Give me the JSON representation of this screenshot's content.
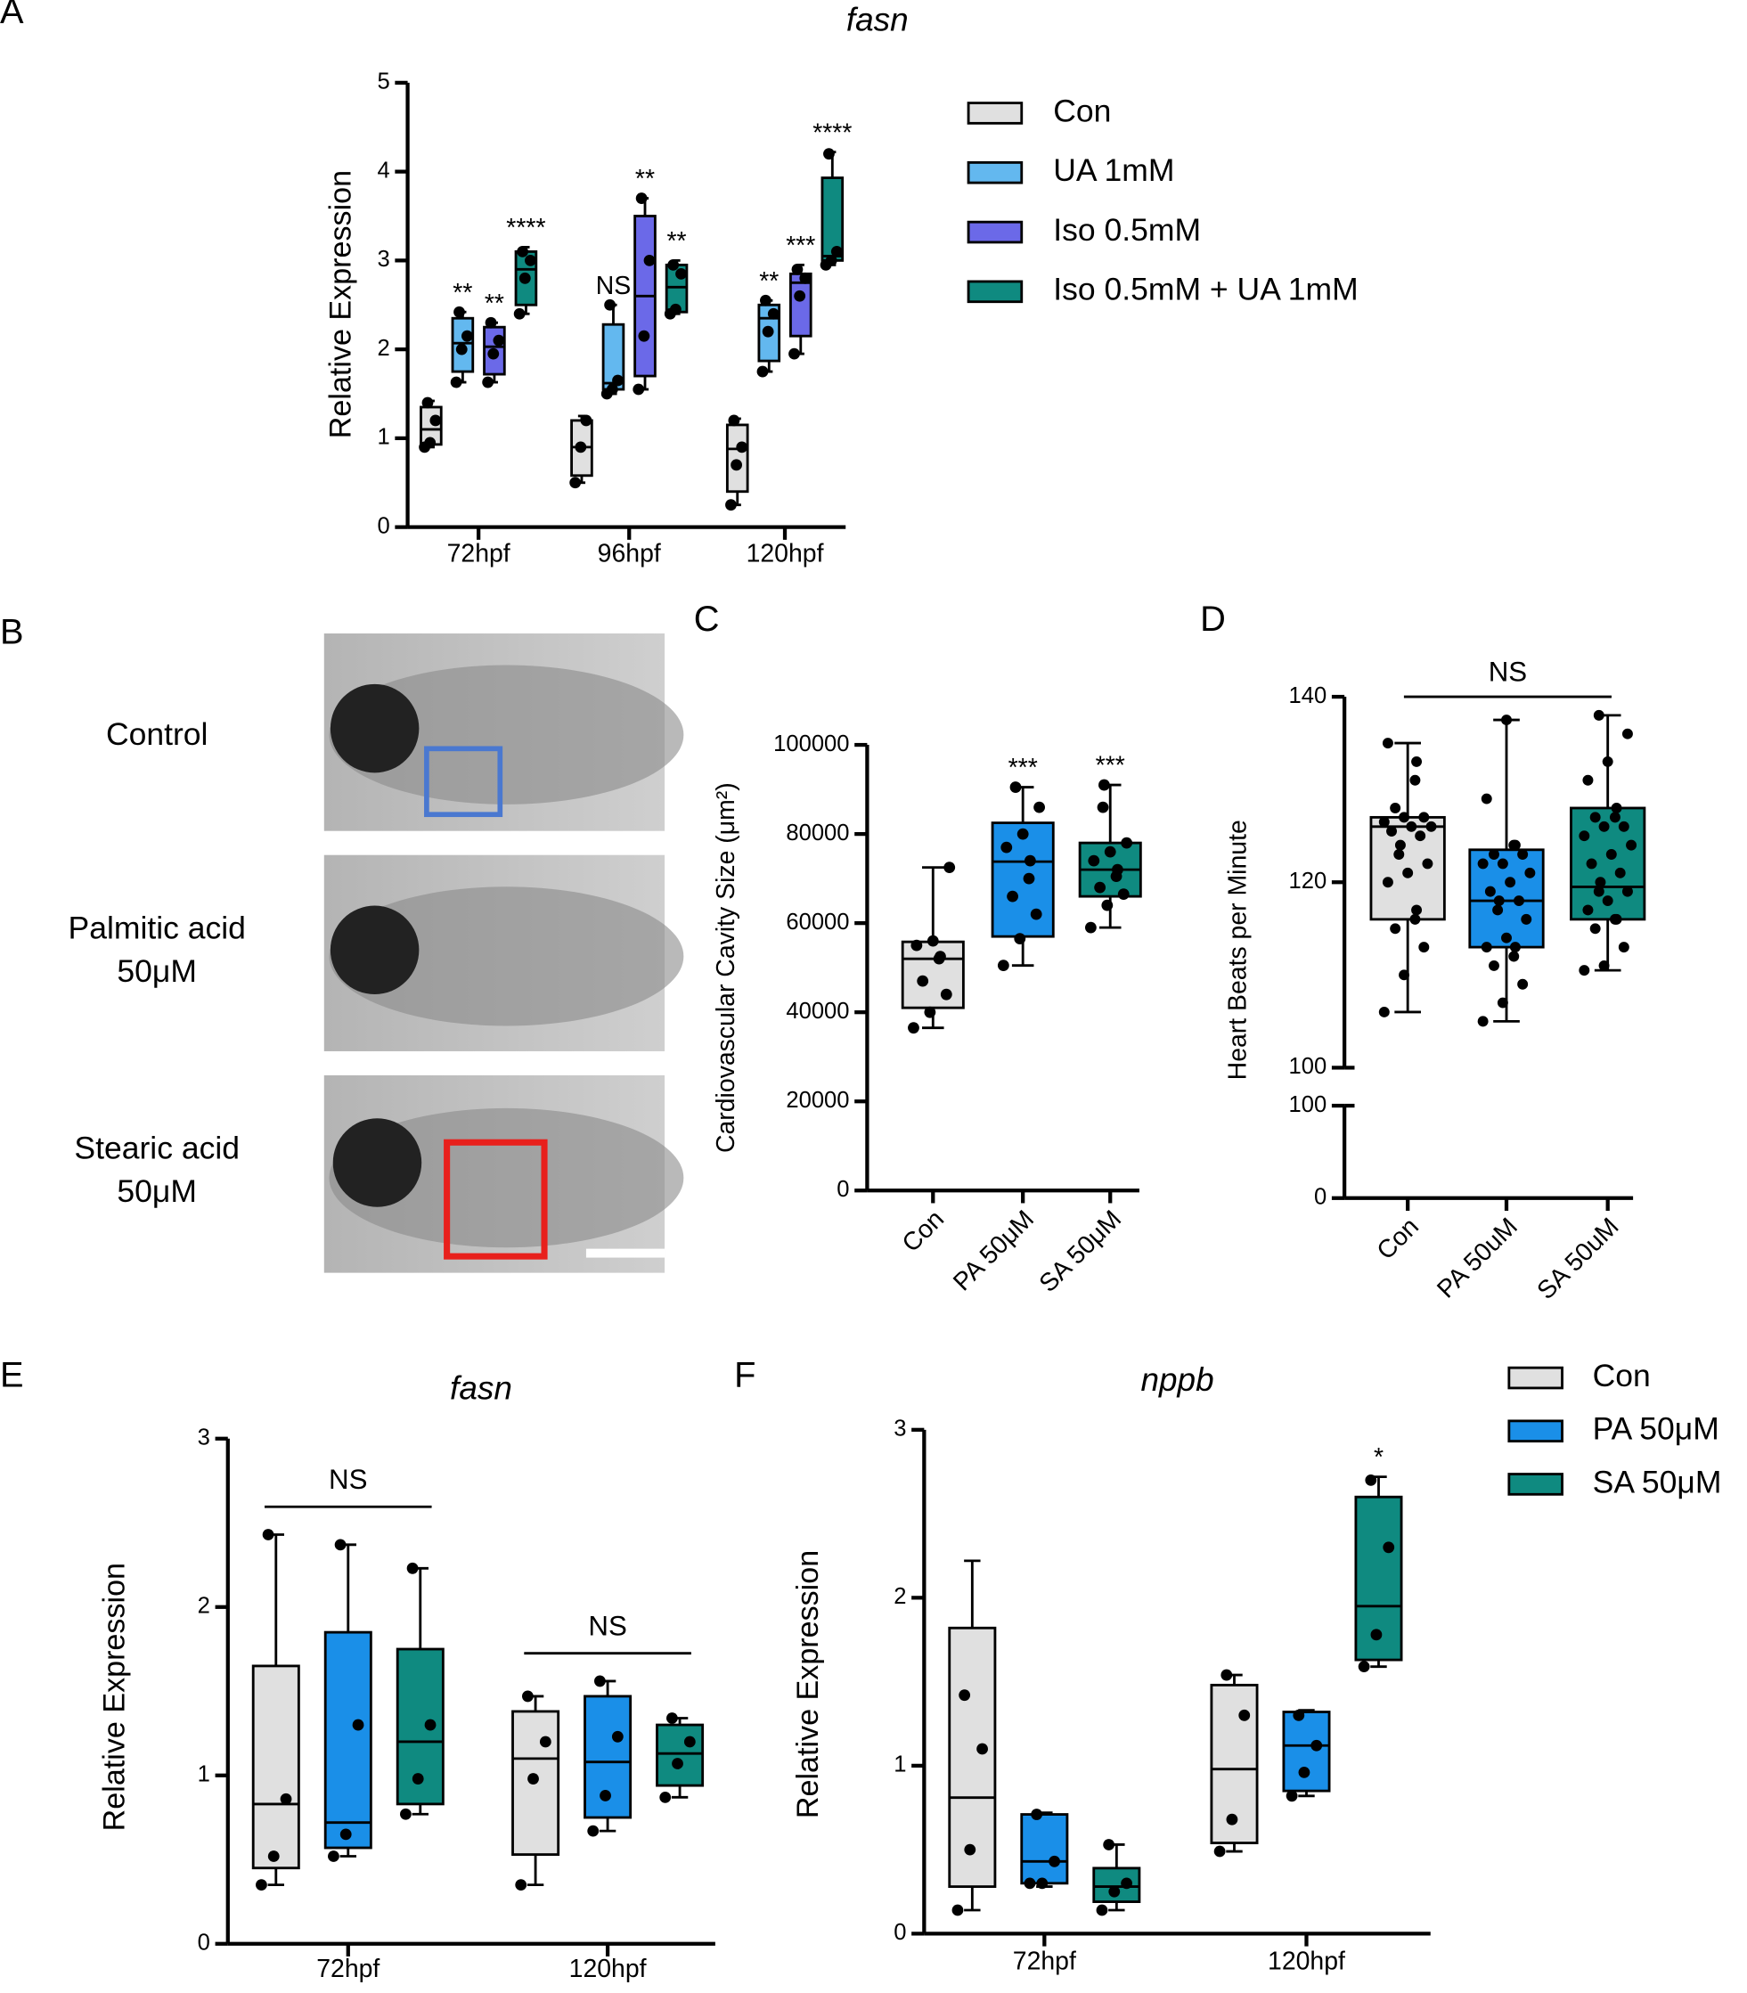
{
  "chart_data": [
    {
      "type": "box",
      "panel": "A",
      "title": "fasn",
      "y_label": "Relative Expression",
      "categories": [
        "72hpf",
        "96hpf",
        "120hpf"
      ],
      "ylim": [
        0,
        5
      ],
      "yticks": [
        0,
        1,
        2,
        3,
        4,
        5
      ],
      "legend": true,
      "series": [
        {
          "name": "Con",
          "color": "#e0e0e0",
          "labels": [
            null,
            null,
            null
          ],
          "boxes": [
            {
              "min": 0.9,
              "q1": 0.93,
              "median": 1.1,
              "q3": 1.35,
              "max": 1.42,
              "points": [
                0.9,
                0.95,
                1.2,
                1.4
              ]
            },
            {
              "min": 0.5,
              "q1": 0.58,
              "median": 0.9,
              "q3": 1.2,
              "max": 1.25,
              "points": [
                0.5,
                0.9,
                1.2
              ]
            },
            {
              "min": 0.25,
              "q1": 0.4,
              "median": 0.88,
              "q3": 1.15,
              "max": 1.22,
              "points": [
                0.25,
                0.7,
                0.9,
                1.2
              ]
            }
          ]
        },
        {
          "name": "UA 1mM",
          "color": "#63b8ef",
          "labels": [
            "**",
            "NS",
            "**"
          ],
          "boxes": [
            {
              "min": 1.63,
              "q1": 1.75,
              "median": 2.07,
              "q3": 2.35,
              "max": 2.42,
              "points": [
                1.63,
                2.0,
                2.15,
                2.42
              ]
            },
            {
              "min": 1.5,
              "q1": 1.55,
              "median": 1.62,
              "q3": 2.28,
              "max": 2.5,
              "points": [
                1.5,
                1.55,
                1.65,
                2.5
              ]
            },
            {
              "min": 1.75,
              "q1": 1.87,
              "median": 2.35,
              "q3": 2.5,
              "max": 2.55,
              "points": [
                1.75,
                2.2,
                2.4,
                2.55
              ]
            }
          ]
        },
        {
          "name": "Iso 0.5mM",
          "color": "#6b69e8",
          "labels": [
            "**",
            "**",
            "***"
          ],
          "boxes": [
            {
              "min": 1.63,
              "q1": 1.72,
              "median": 2.03,
              "q3": 2.25,
              "max": 2.3,
              "points": [
                1.63,
                1.95,
                2.1,
                2.3
              ]
            },
            {
              "min": 1.55,
              "q1": 1.7,
              "median": 2.6,
              "q3": 3.5,
              "max": 3.7,
              "points": [
                1.55,
                2.15,
                3.0,
                3.7
              ]
            },
            {
              "min": 1.95,
              "q1": 2.15,
              "median": 2.75,
              "q3": 2.85,
              "max": 2.95,
              "points": [
                1.95,
                2.6,
                2.8,
                2.9
              ]
            }
          ]
        },
        {
          "name": "Iso 0.5mM + UA 1mM",
          "color": "#0f8a80",
          "labels": [
            "****",
            "**",
            "****"
          ],
          "boxes": [
            {
              "min": 2.4,
              "q1": 2.5,
              "median": 2.9,
              "q3": 3.1,
              "max": 3.15,
              "points": [
                2.4,
                2.8,
                3.0,
                3.1
              ]
            },
            {
              "min": 2.4,
              "q1": 2.42,
              "median": 2.7,
              "q3": 2.95,
              "max": 3.0,
              "points": [
                2.4,
                2.45,
                2.85,
                2.95
              ]
            },
            {
              "min": 2.95,
              "q1": 3.0,
              "median": 3.05,
              "q3": 3.93,
              "max": 4.22,
              "points": [
                2.95,
                3.0,
                3.1,
                4.2
              ]
            }
          ]
        }
      ]
    },
    {
      "type": "box",
      "panel": "C",
      "y_label": "Cardiovascular Cavity Size (μm²)",
      "categories": [
        "Con",
        "PA 50μM",
        "SA 50μM"
      ],
      "colors": [
        "#e0e0e0",
        "#1a8fe8",
        "#0f8a80"
      ],
      "ylim": [
        0,
        100000
      ],
      "yticks": [
        0,
        20000,
        40000,
        60000,
        80000,
        100000
      ],
      "labels": [
        null,
        "***",
        "***"
      ],
      "boxes": [
        {
          "min": 36500,
          "q1": 41000,
          "median": 52000,
          "q3": 55800,
          "max": 72500,
          "points": [
            36500,
            40000,
            44000,
            47000,
            52000,
            52500,
            55000,
            56000,
            72500
          ]
        },
        {
          "min": 50500,
          "q1": 57000,
          "median": 73800,
          "q3": 82500,
          "max": 90500,
          "points": [
            50500,
            56500,
            62000,
            66000,
            70000,
            74000,
            77000,
            80000,
            86000,
            90500
          ]
        },
        {
          "min": 59000,
          "q1": 66000,
          "median": 72000,
          "q3": 78000,
          "max": 91000,
          "points": [
            59000,
            64000,
            66500,
            68000,
            70500,
            72000,
            74000,
            76000,
            78000,
            86000,
            91000
          ]
        }
      ]
    },
    {
      "type": "box",
      "panel": "D",
      "y_label": "Heart Beats per Minute",
      "annotation": "NS",
      "categories": [
        "Con",
        "PA 50uM",
        "SA 50uM"
      ],
      "colors": [
        "#e0e0e0",
        "#1a8fe8",
        "#0f8a80"
      ],
      "ylim": [
        100,
        140
      ],
      "yticks": [
        100,
        120,
        140
      ],
      "break": {
        "ylim": [
          0,
          100
        ],
        "yticks": [
          0,
          100
        ]
      },
      "boxes": [
        {
          "min": 106,
          "q1": 116,
          "median": 126,
          "q3": 127,
          "max": 135,
          "points": [
            106,
            110,
            113,
            115,
            116,
            117,
            120,
            121,
            122,
            123,
            124,
            125,
            125.5,
            126,
            126,
            126.5,
            127,
            127,
            128,
            131,
            133,
            135
          ]
        },
        {
          "min": 105,
          "q1": 113,
          "median": 118,
          "q3": 123.5,
          "max": 137.5,
          "points": [
            105,
            107,
            109,
            111,
            112,
            113,
            113,
            114,
            116,
            117,
            118,
            118,
            119,
            120,
            121,
            122,
            122,
            123,
            123,
            124,
            124,
            129,
            137.5
          ]
        },
        {
          "min": 110.5,
          "q1": 116,
          "median": 119.5,
          "q3": 128,
          "max": 138,
          "points": [
            110.5,
            111,
            113,
            115,
            116,
            116,
            117,
            118,
            119,
            119,
            120,
            121,
            122,
            123,
            124,
            125,
            126,
            126,
            127,
            127,
            128,
            131,
            133,
            136,
            138
          ]
        }
      ]
    },
    {
      "type": "box",
      "panel": "E",
      "title": "fasn",
      "y_label": "Relative Expression",
      "categories": [
        "72hpf",
        "120hpf"
      ],
      "group_labels": [
        "NS",
        "NS"
      ],
      "ylim": [
        0,
        3
      ],
      "yticks": [
        0,
        1,
        2,
        3
      ],
      "legend": false,
      "series": [
        {
          "color": "#e0e0e0",
          "boxes": [
            {
              "min": 0.35,
              "q1": 0.45,
              "median": 0.83,
              "q3": 1.65,
              "max": 2.43,
              "points": [
                0.35,
                0.52,
                0.86,
                2.43
              ]
            },
            {
              "min": 0.35,
              "q1": 0.53,
              "median": 1.1,
              "q3": 1.38,
              "max": 1.47,
              "points": [
                0.35,
                0.98,
                1.2,
                1.47
              ]
            }
          ]
        },
        {
          "color": "#1a8fe8",
          "boxes": [
            {
              "min": 0.52,
              "q1": 0.57,
              "median": 0.72,
              "q3": 1.85,
              "max": 2.37,
              "points": [
                0.52,
                0.65,
                1.3,
                2.37
              ]
            },
            {
              "min": 0.67,
              "q1": 0.75,
              "median": 1.08,
              "q3": 1.47,
              "max": 1.56,
              "points": [
                0.67,
                0.88,
                1.23,
                1.56
              ]
            }
          ]
        },
        {
          "color": "#0f8a80",
          "boxes": [
            {
              "min": 0.77,
              "q1": 0.83,
              "median": 1.2,
              "q3": 1.75,
              "max": 2.23,
              "points": [
                0.77,
                0.98,
                1.3,
                2.23
              ]
            },
            {
              "min": 0.87,
              "q1": 0.94,
              "median": 1.13,
              "q3": 1.3,
              "max": 1.34,
              "points": [
                0.87,
                1.07,
                1.2,
                1.34
              ]
            }
          ]
        }
      ]
    },
    {
      "type": "box",
      "panel": "F",
      "title": "nppb",
      "y_label": "Relative Expression",
      "categories": [
        "72hpf",
        "120hpf"
      ],
      "ylim": [
        0,
        3
      ],
      "yticks": [
        0,
        1,
        2,
        3
      ],
      "legend": true,
      "series": [
        {
          "name": "Con",
          "color": "#e0e0e0",
          "labels": [
            null,
            null
          ],
          "boxes": [
            {
              "min": 0.14,
              "q1": 0.28,
              "median": 0.81,
              "q3": 1.82,
              "max": 2.22,
              "points": [
                0.14,
                0.5,
                1.1,
                1.42
              ]
            },
            {
              "min": 0.49,
              "q1": 0.54,
              "median": 0.98,
              "q3": 1.48,
              "max": 1.54,
              "points": [
                0.49,
                0.68,
                1.3,
                1.54
              ]
            }
          ]
        },
        {
          "name": "PA 50μM",
          "color": "#1a8fe8",
          "labels": [
            null,
            null
          ],
          "boxes": [
            {
              "min": 0.28,
              "q1": 0.3,
              "median": 0.43,
              "q3": 0.71,
              "max": 0.72,
              "points": [
                0.3,
                0.3,
                0.43,
                0.71
              ]
            },
            {
              "min": 0.82,
              "q1": 0.85,
              "median": 1.12,
              "q3": 1.32,
              "max": 1.33,
              "points": [
                0.82,
                0.96,
                1.12,
                1.3
              ]
            }
          ]
        },
        {
          "name": "SA 50μM",
          "color": "#0f8a80",
          "labels": [
            null,
            "*"
          ],
          "boxes": [
            {
              "min": 0.14,
              "q1": 0.19,
              "median": 0.28,
              "q3": 0.39,
              "max": 0.53,
              "points": [
                0.14,
                0.25,
                0.3,
                0.53
              ]
            },
            {
              "min": 1.59,
              "q1": 1.63,
              "median": 1.95,
              "q3": 2.6,
              "max": 2.72,
              "points": [
                1.59,
                1.78,
                2.3,
                2.7
              ]
            }
          ]
        }
      ]
    }
  ],
  "image_panel": {
    "panel": "B",
    "rows": [
      {
        "label": [
          "Control"
        ]
      },
      {
        "label": [
          "Palmitic acid",
          "50μM"
        ]
      },
      {
        "label": [
          "Stearic acid",
          "50μM"
        ]
      }
    ]
  }
}
